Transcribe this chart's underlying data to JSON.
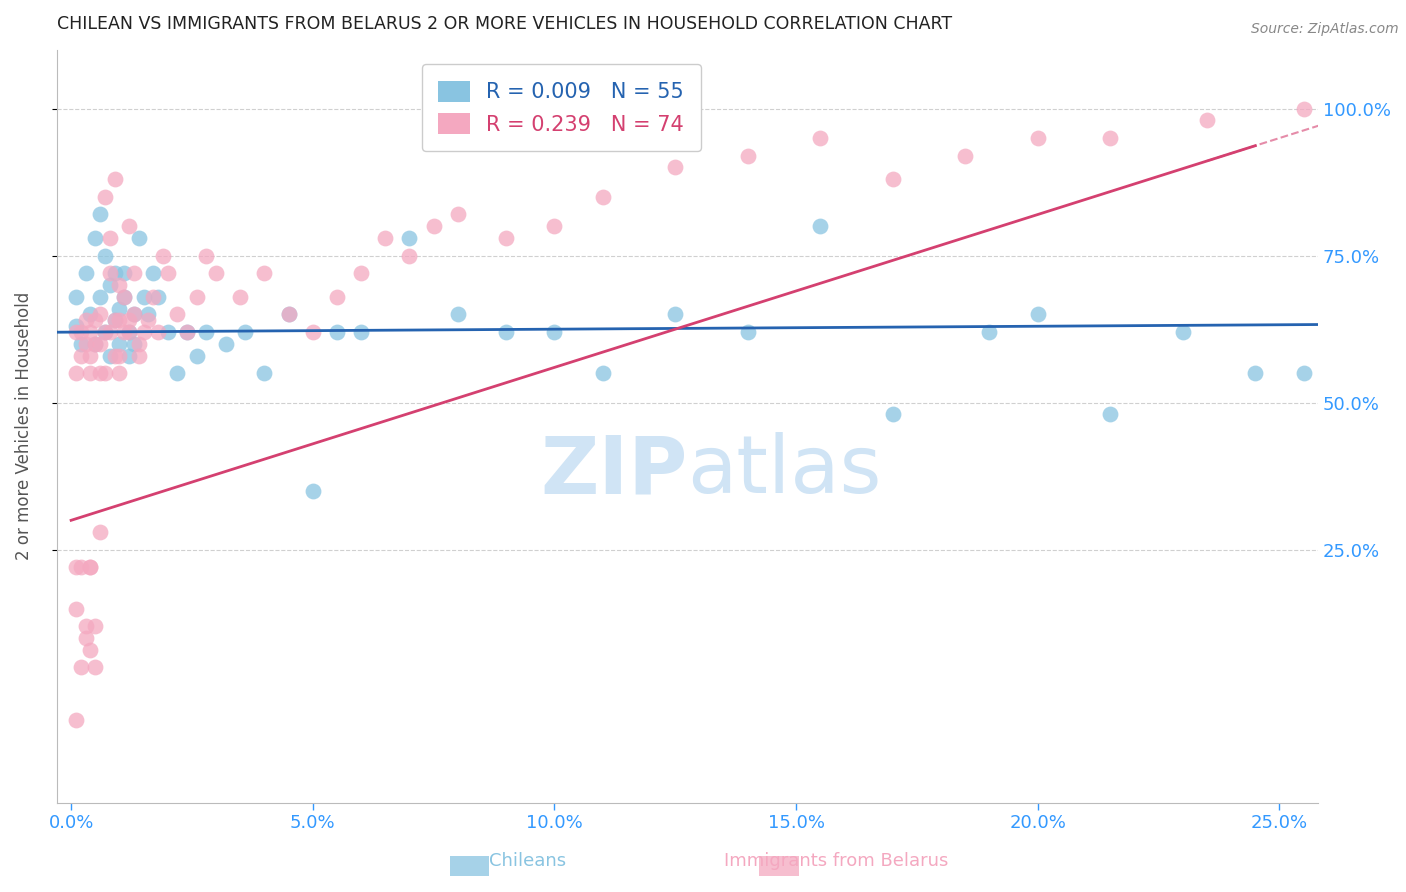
{
  "title": "CHILEAN VS IMMIGRANTS FROM BELARUS 2 OR MORE VEHICLES IN HOUSEHOLD CORRELATION CHART",
  "source": "Source: ZipAtlas.com",
  "ylabel": "2 or more Vehicles in Household",
  "xlabel_ticks": [
    "0.0%",
    "5.0%",
    "10.0%",
    "15.0%",
    "20.0%",
    "25.0%"
  ],
  "xlabel_vals": [
    0.0,
    0.05,
    0.1,
    0.15,
    0.2,
    0.25
  ],
  "ylabel_ticks": [
    "25.0%",
    "50.0%",
    "75.0%",
    "100.0%"
  ],
  "ylabel_vals": [
    0.25,
    0.5,
    0.75,
    1.0
  ],
  "xlim": [
    -0.003,
    0.258
  ],
  "ylim": [
    -0.18,
    1.1
  ],
  "legend_r1": "R = 0.009",
  "legend_n1": "N = 55",
  "legend_r2": "R = 0.239",
  "legend_n2": "N = 74",
  "color_blue": "#89c4e1",
  "color_pink": "#f4a8c0",
  "trendline_blue_color": "#2563b0",
  "trendline_pink_color": "#d44070",
  "title_color": "#222222",
  "axis_label_color": "#555555",
  "tick_color_right": "#3399ff",
  "tick_color_bottom": "#3399ff",
  "grid_color": "#d0d0d0",
  "watermark_color": "#d0e4f5",
  "blue_scatter_x": [
    0.001,
    0.001,
    0.002,
    0.003,
    0.004,
    0.005,
    0.005,
    0.006,
    0.006,
    0.007,
    0.007,
    0.008,
    0.008,
    0.009,
    0.009,
    0.01,
    0.01,
    0.011,
    0.011,
    0.012,
    0.012,
    0.013,
    0.013,
    0.014,
    0.015,
    0.016,
    0.017,
    0.018,
    0.02,
    0.022,
    0.024,
    0.026,
    0.028,
    0.032,
    0.036,
    0.04,
    0.045,
    0.05,
    0.055,
    0.06,
    0.07,
    0.08,
    0.09,
    0.1,
    0.11,
    0.125,
    0.14,
    0.155,
    0.17,
    0.19,
    0.2,
    0.215,
    0.23,
    0.245,
    0.255
  ],
  "blue_scatter_y": [
    0.63,
    0.68,
    0.6,
    0.72,
    0.65,
    0.78,
    0.6,
    0.82,
    0.68,
    0.75,
    0.62,
    0.58,
    0.7,
    0.64,
    0.72,
    0.6,
    0.66,
    0.68,
    0.72,
    0.62,
    0.58,
    0.65,
    0.6,
    0.78,
    0.68,
    0.65,
    0.72,
    0.68,
    0.62,
    0.55,
    0.62,
    0.58,
    0.62,
    0.6,
    0.62,
    0.55,
    0.65,
    0.35,
    0.62,
    0.62,
    0.78,
    0.65,
    0.62,
    0.62,
    0.55,
    0.65,
    0.62,
    0.8,
    0.48,
    0.62,
    0.65,
    0.48,
    0.62,
    0.55,
    0.55
  ],
  "pink_scatter_x": [
    0.001,
    0.001,
    0.001,
    0.002,
    0.002,
    0.002,
    0.003,
    0.003,
    0.003,
    0.004,
    0.004,
    0.004,
    0.004,
    0.005,
    0.005,
    0.005,
    0.006,
    0.006,
    0.006,
    0.007,
    0.007,
    0.007,
    0.008,
    0.008,
    0.008,
    0.009,
    0.009,
    0.009,
    0.01,
    0.01,
    0.01,
    0.01,
    0.011,
    0.011,
    0.012,
    0.012,
    0.012,
    0.013,
    0.013,
    0.014,
    0.014,
    0.015,
    0.016,
    0.017,
    0.018,
    0.019,
    0.02,
    0.022,
    0.024,
    0.026,
    0.028,
    0.03,
    0.035,
    0.04,
    0.045,
    0.05,
    0.055,
    0.06,
    0.065,
    0.07,
    0.075,
    0.08,
    0.09,
    0.1,
    0.11,
    0.125,
    0.14,
    0.155,
    0.17,
    0.185,
    0.2,
    0.215,
    0.235,
    0.255
  ],
  "pink_scatter_y": [
    0.62,
    0.55,
    0.15,
    0.62,
    0.58,
    0.05,
    0.64,
    0.6,
    0.1,
    0.62,
    0.58,
    0.08,
    0.55,
    0.64,
    0.6,
    0.05,
    0.65,
    0.6,
    0.55,
    0.85,
    0.62,
    0.55,
    0.78,
    0.62,
    0.72,
    0.88,
    0.64,
    0.58,
    0.7,
    0.64,
    0.58,
    0.55,
    0.62,
    0.68,
    0.8,
    0.64,
    0.62,
    0.72,
    0.65,
    0.6,
    0.58,
    0.62,
    0.64,
    0.68,
    0.62,
    0.75,
    0.72,
    0.65,
    0.62,
    0.68,
    0.75,
    0.72,
    0.68,
    0.72,
    0.65,
    0.62,
    0.68,
    0.72,
    0.78,
    0.75,
    0.8,
    0.82,
    0.78,
    0.8,
    0.85,
    0.9,
    0.92,
    0.95,
    0.88,
    0.92,
    0.95,
    0.95,
    0.98,
    1.0
  ],
  "pink_low_x": [
    0.001,
    0.001,
    0.002,
    0.003,
    0.004,
    0.004,
    0.005,
    0.006
  ],
  "pink_low_y": [
    -0.04,
    0.22,
    0.22,
    0.12,
    0.22,
    0.22,
    0.12,
    0.28
  ]
}
